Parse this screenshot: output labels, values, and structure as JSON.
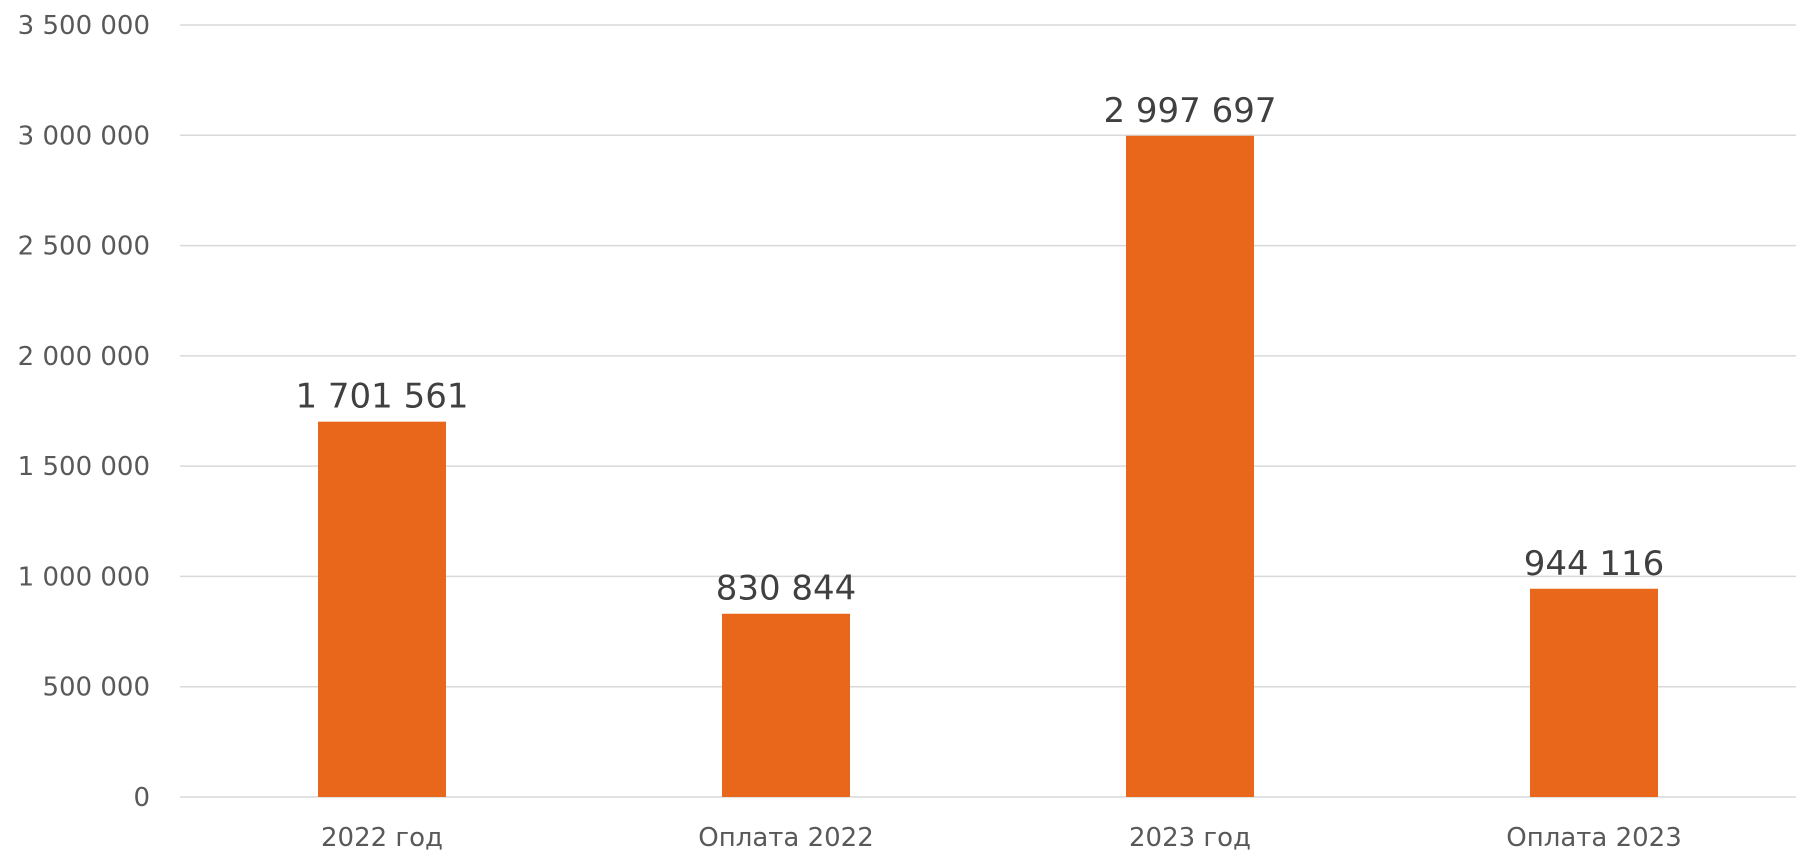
{
  "chart_data": {
    "type": "bar",
    "title": "",
    "xlabel": "",
    "ylabel": "",
    "categories": [
      "2022 год",
      "Оплата 2022",
      "2023 год",
      "Оплата 2023"
    ],
    "values": [
      1701561,
      830844,
      2997697,
      944116
    ],
    "data_labels": [
      "1 701 561",
      "830 844",
      "2 997 697",
      "944 116"
    ],
    "ylim": [
      0,
      3500000
    ],
    "y_ticks": [
      {
        "value": 0,
        "label": "0"
      },
      {
        "value": 500000,
        "label": "500 000"
      },
      {
        "value": 1000000,
        "label": "1 000 000"
      },
      {
        "value": 1500000,
        "label": "1 500 000"
      },
      {
        "value": 2000000,
        "label": "2 000 000"
      },
      {
        "value": 2500000,
        "label": "2 500 000"
      },
      {
        "value": 3000000,
        "label": "3 000 000"
      },
      {
        "value": 3500000,
        "label": "3 500 000"
      }
    ],
    "grid": true,
    "legend": "none",
    "colors": {
      "bar": "#e8671a",
      "grid": "#d9d9d9",
      "tick_text": "#595959",
      "label_text": "#404040"
    }
  }
}
